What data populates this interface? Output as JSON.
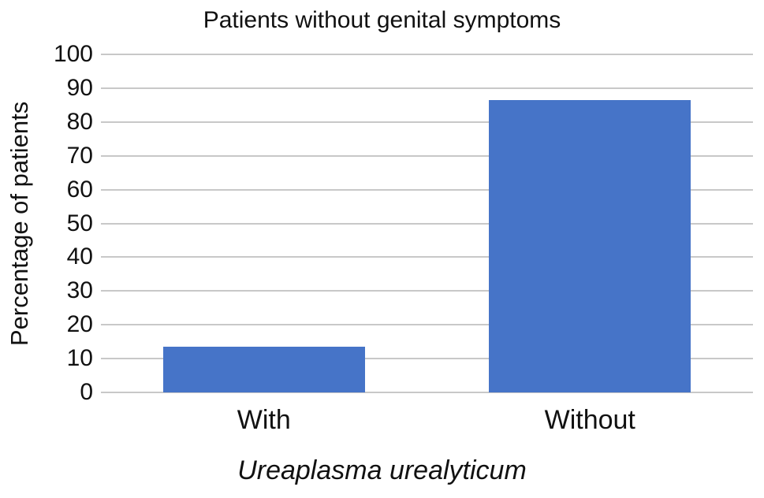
{
  "chart_data": {
    "type": "bar",
    "title": "Patients without genital symptoms",
    "categories": [
      "With",
      "Without"
    ],
    "values": [
      13.6,
      86.4
    ],
    "xlabel": "Ureaplasma urealyticum",
    "ylabel": "Percentage of patients",
    "ylim": [
      0,
      100
    ],
    "yticks": [
      0,
      10,
      20,
      30,
      40,
      50,
      60,
      70,
      80,
      90,
      100
    ],
    "grid": true,
    "legend": "none",
    "xlabel_style": "italic",
    "colors": {
      "bar": "#4674c8",
      "gridline": "#c8c8c8",
      "text": "#111111",
      "background": "#ffffff"
    }
  }
}
